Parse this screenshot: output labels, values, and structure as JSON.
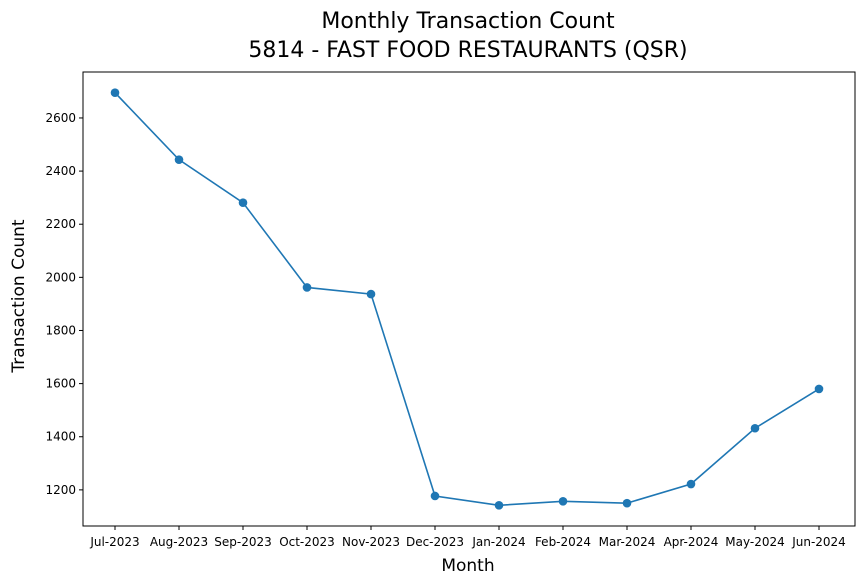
{
  "chart_data": {
    "type": "line",
    "title": "Monthly Transaction Count",
    "subtitle": "5814 - FAST FOOD RESTAURANTS (QSR)",
    "xlabel": "Month",
    "ylabel": "Transaction Count",
    "categories": [
      "Jul-2023",
      "Aug-2023",
      "Sep-2023",
      "Oct-2023",
      "Nov-2023",
      "Dec-2023",
      "Jan-2024",
      "Feb-2024",
      "Mar-2024",
      "Apr-2024",
      "May-2024",
      "Jun-2024"
    ],
    "series": [
      {
        "values": [
          2695,
          2443,
          2281,
          1962,
          1937,
          1177,
          1142,
          1157,
          1150,
          1222,
          1432,
          1580
        ],
        "color": "#1f77b4"
      }
    ],
    "yticks": [
      1200,
      1400,
      1600,
      1800,
      2000,
      2200,
      2400,
      2600
    ],
    "ylim": [
      1064,
      2773
    ],
    "grid": false,
    "legend": "none"
  }
}
